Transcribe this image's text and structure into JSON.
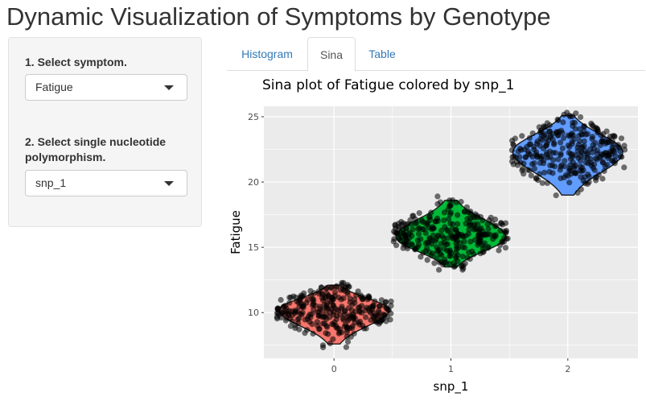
{
  "app": {
    "title": "Dynamic Visualization of Symptoms by Genotype"
  },
  "sidebar": {
    "symptom_label": "1. Select symptom.",
    "symptom_value": "Fatigue",
    "snp_label": "2. Select single nucleotide polymorphism.",
    "snp_value": "snp_1"
  },
  "tabs": [
    {
      "label": "Histogram",
      "active": false
    },
    {
      "label": "Sina",
      "active": true
    },
    {
      "label": "Table",
      "active": false
    }
  ],
  "chart_data": {
    "type": "scatter",
    "subtype": "sina",
    "title": "Sina plot of Fatigue colored by snp_1",
    "xlabel": "snp_1",
    "ylabel": "Fatigue",
    "xlim": [
      -0.6,
      2.6
    ],
    "ylim": [
      6.5,
      25.8
    ],
    "x_ticks": [
      0,
      1,
      2
    ],
    "y_ticks": [
      10,
      15,
      20,
      25
    ],
    "grid": true,
    "background": "#ebebeb",
    "series": [
      {
        "x": 0,
        "color": "#f8766d",
        "median": 10.2,
        "min": 7.6,
        "max": 12.1
      },
      {
        "x": 1,
        "color": "#00ba38",
        "median": 15.8,
        "min": 13.5,
        "max": 18.6
      },
      {
        "x": 2,
        "color": "#619cff",
        "median": 22.3,
        "min": 19.0,
        "max": 25.1
      }
    ]
  }
}
